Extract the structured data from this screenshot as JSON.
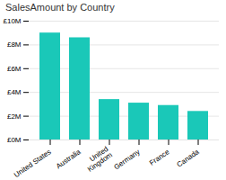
{
  "chart_data": {
    "type": "bar",
    "title": "SalesAmount by Country",
    "categories": [
      "United States",
      "Australia",
      "United\nKingdom",
      "Germany",
      "France",
      "Canada"
    ],
    "values": [
      9.0,
      8.6,
      3.4,
      3.1,
      2.9,
      2.4
    ],
    "color": "#1AC8B8",
    "ylim": [
      0,
      10
    ],
    "yticks": [
      {
        "value": 0,
        "label": "£0M"
      },
      {
        "value": 2,
        "label": "£2M"
      },
      {
        "value": 4,
        "label": "£4M"
      },
      {
        "value": 6,
        "label": "£6M"
      },
      {
        "value": 8,
        "label": "£8M"
      },
      {
        "value": 10,
        "label": "£10M"
      }
    ],
    "grid": true
  }
}
